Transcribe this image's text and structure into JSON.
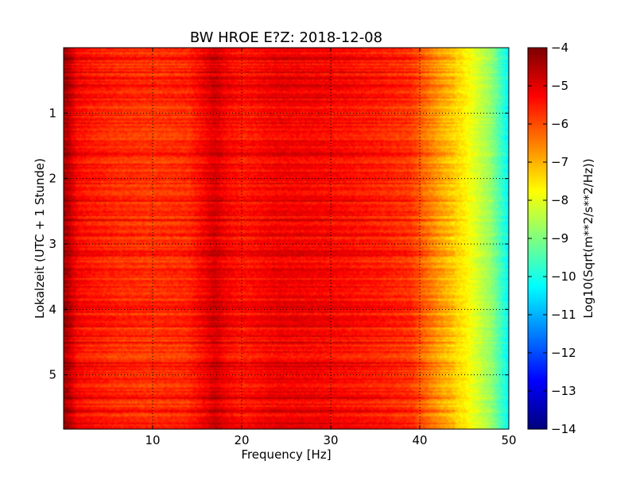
{
  "chart_data": {
    "type": "heatmap",
    "title": "BW HROE E?Z: 2018-12-08",
    "xlabel": "Frequency [Hz]",
    "ylabel": "Lokalzeit (UTC + 1 Stunde)",
    "xlim": [
      0,
      50
    ],
    "ylim": [
      5.83,
      0
    ],
    "x_ticks": [
      10,
      20,
      30,
      40,
      50
    ],
    "y_ticks": [
      1,
      2,
      3,
      4,
      5
    ],
    "grid": true,
    "colormap": "jet",
    "colorbar": {
      "label": "Log10(Sqrt(m**2/s**2/Hz))",
      "range": [
        -14,
        -4
      ],
      "ticks": [
        -4,
        -5,
        -6,
        -7,
        -8,
        -9,
        -10,
        -11,
        -12,
        -13,
        -14
      ]
    },
    "spectrum_profile": {
      "frequency_hz": [
        0,
        0.5,
        1.5,
        3,
        6,
        10,
        14,
        16,
        17,
        18,
        20,
        24,
        28,
        32,
        36,
        39,
        40.5,
        42,
        43.5,
        45,
        46.5,
        48,
        49.3,
        50
      ],
      "log10_amplitude": [
        -4.4,
        -4.6,
        -5.3,
        -5.5,
        -5.7,
        -5.8,
        -5.7,
        -5.2,
        -4.9,
        -5.2,
        -5.5,
        -5.2,
        -5.25,
        -5.4,
        -5.6,
        -5.8,
        -6.3,
        -6.8,
        -7.2,
        -7.6,
        -8.2,
        -8.8,
        -9.8,
        -10.3
      ]
    }
  }
}
